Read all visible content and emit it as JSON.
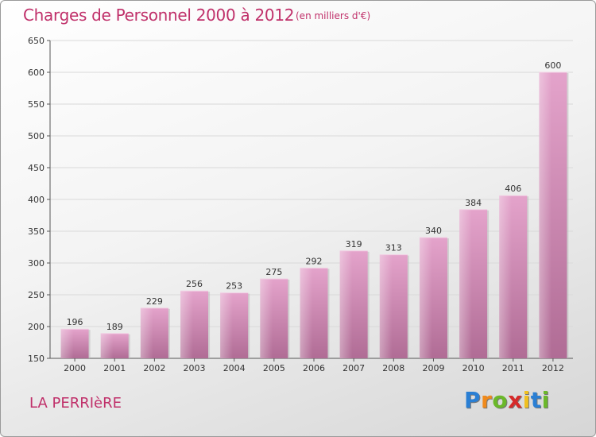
{
  "chart_data": {
    "type": "bar",
    "title": "Charges de Personnel 2000 à 2012",
    "subtitle": "(en milliers d'€)",
    "categories": [
      "2000",
      "2001",
      "2002",
      "2003",
      "2004",
      "2005",
      "2006",
      "2007",
      "2008",
      "2009",
      "2010",
      "2011",
      "2012"
    ],
    "values": [
      196,
      189,
      229,
      256,
      253,
      275,
      292,
      319,
      313,
      340,
      384,
      406,
      600
    ],
    "value_labels": [
      "196",
      "189",
      "229",
      "256",
      "253",
      "275",
      "292",
      "319",
      "313",
      "340",
      "384",
      "406",
      "600"
    ],
    "xlabel": "",
    "ylabel": "",
    "ylim": [
      150,
      650
    ],
    "yticks": [
      150,
      200,
      250,
      300,
      350,
      400,
      450,
      500,
      550,
      600,
      650
    ],
    "grid": true,
    "bar_color": "#d98ab8"
  },
  "commune": "LA PERRIèRE",
  "logo": {
    "letters": [
      "P",
      "r",
      "o",
      "x",
      "i",
      "t",
      "i"
    ],
    "colors": [
      "#2a7fd4",
      "#f08a1c",
      "#6bb82a",
      "#d62a2a",
      "#f0c020",
      "#2a7fd4",
      "#6bb82a"
    ]
  }
}
